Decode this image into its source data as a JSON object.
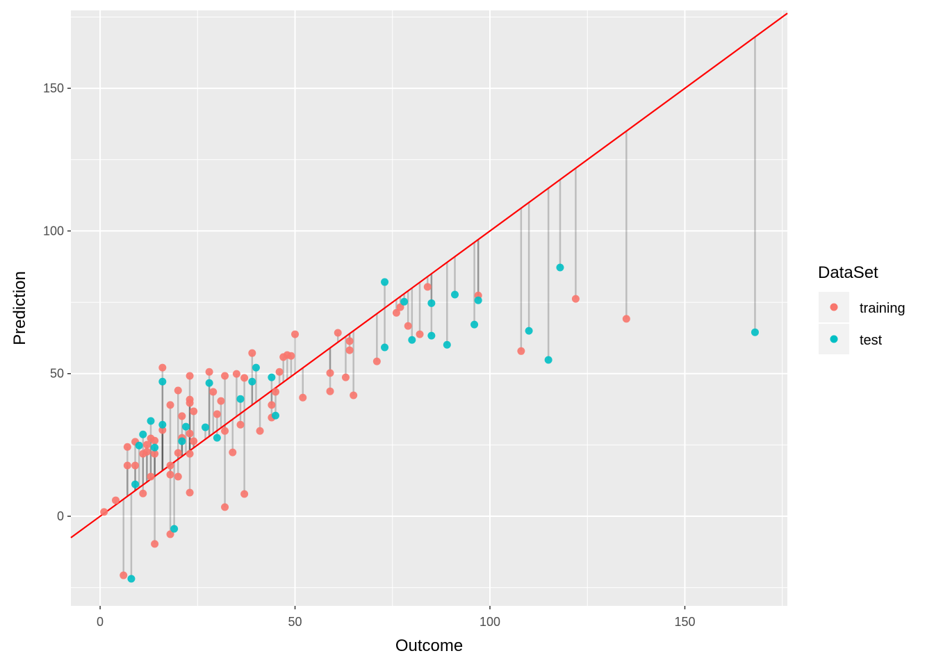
{
  "chart_data": {
    "type": "scatter",
    "xlabel": "Outcome",
    "ylabel": "Prediction",
    "xlim": [
      -7.5,
      176.3
    ],
    "ylim": [
      -31.4,
      177.3
    ],
    "xticks": [
      0,
      50,
      100,
      150
    ],
    "yticks": [
      0,
      50,
      100,
      150
    ],
    "grid": true,
    "reference_line": {
      "slope": 1,
      "intercept": 0,
      "color": "#FF0000"
    },
    "residual_segments": true,
    "legend": {
      "title": "DataSet",
      "position": "right"
    },
    "series": [
      {
        "name": "training",
        "color": "#F8766D",
        "points": [
          [
            1,
            1.5
          ],
          [
            4,
            5.6
          ],
          [
            6,
            -20.7
          ],
          [
            7,
            24.3
          ],
          [
            7,
            17.8
          ],
          [
            9,
            26.1
          ],
          [
            9,
            17.8
          ],
          [
            11,
            21.9
          ],
          [
            11,
            8.0
          ],
          [
            12,
            25.1
          ],
          [
            12,
            22.6
          ],
          [
            13,
            27.3
          ],
          [
            13,
            13.9
          ],
          [
            14,
            26.5
          ],
          [
            14,
            21.9
          ],
          [
            14,
            -9.7
          ],
          [
            16,
            52.1
          ],
          [
            16,
            30.2
          ],
          [
            18,
            39.0
          ],
          [
            18,
            17.8
          ],
          [
            18,
            14.6
          ],
          [
            18,
            -6.3
          ],
          [
            20,
            44.1
          ],
          [
            20,
            22.2
          ],
          [
            20,
            13.9
          ],
          [
            21,
            35.1
          ],
          [
            21,
            27.5
          ],
          [
            23,
            49.2
          ],
          [
            23,
            40.9
          ],
          [
            23,
            39.7
          ],
          [
            23,
            29.0
          ],
          [
            23,
            21.9
          ],
          [
            23,
            8.3
          ],
          [
            24,
            36.8
          ],
          [
            24,
            26.3
          ],
          [
            28,
            50.6
          ],
          [
            29,
            43.6
          ],
          [
            30,
            35.8
          ],
          [
            31,
            40.4
          ],
          [
            32,
            49.2
          ],
          [
            32,
            29.9
          ],
          [
            32,
            3.2
          ],
          [
            34,
            22.4
          ],
          [
            35,
            49.9
          ],
          [
            36,
            32.1
          ],
          [
            37,
            48.5
          ],
          [
            37,
            7.8
          ],
          [
            39,
            57.2
          ],
          [
            41,
            29.9
          ],
          [
            44,
            39.0
          ],
          [
            44,
            34.6
          ],
          [
            45,
            43.6
          ],
          [
            46,
            50.6
          ],
          [
            47,
            55.8
          ],
          [
            48,
            56.5
          ],
          [
            49,
            56.2
          ],
          [
            50,
            63.8
          ],
          [
            52,
            41.6
          ],
          [
            59,
            50.2
          ],
          [
            59,
            43.8
          ],
          [
            61,
            64.3
          ],
          [
            63,
            48.7
          ],
          [
            64,
            61.4
          ],
          [
            64,
            58.2
          ],
          [
            65,
            42.4
          ],
          [
            71,
            54.3
          ],
          [
            76,
            71.3
          ],
          [
            77,
            73.3
          ],
          [
            79,
            66.7
          ],
          [
            82,
            63.8
          ],
          [
            84,
            80.4
          ],
          [
            97,
            77.4
          ],
          [
            108,
            57.9
          ],
          [
            122,
            76.2
          ],
          [
            135,
            69.2
          ]
        ]
      },
      {
        "name": "test",
        "color": "#00BFC4",
        "points": [
          [
            8,
            -21.9
          ],
          [
            9,
            11.2
          ],
          [
            10,
            24.8
          ],
          [
            11,
            28.7
          ],
          [
            13,
            33.4
          ],
          [
            14,
            24.1
          ],
          [
            16,
            47.2
          ],
          [
            16,
            32.1
          ],
          [
            19,
            -4.4
          ],
          [
            21,
            26.3
          ],
          [
            22,
            31.4
          ],
          [
            27,
            31.2
          ],
          [
            28,
            46.7
          ],
          [
            30,
            27.5
          ],
          [
            36,
            41.1
          ],
          [
            39,
            47.2
          ],
          [
            40,
            52.1
          ],
          [
            44,
            48.7
          ],
          [
            45,
            35.3
          ],
          [
            73,
            82.1
          ],
          [
            73,
            59.2
          ],
          [
            78,
            75.2
          ],
          [
            80,
            61.8
          ],
          [
            85,
            74.7
          ],
          [
            85,
            63.3
          ],
          [
            89,
            60.1
          ],
          [
            91,
            77.7
          ],
          [
            96,
            67.2
          ],
          [
            97,
            75.7
          ],
          [
            110,
            65.0
          ],
          [
            115,
            54.8
          ],
          [
            118,
            87.2
          ],
          [
            168,
            64.5
          ]
        ]
      }
    ]
  }
}
